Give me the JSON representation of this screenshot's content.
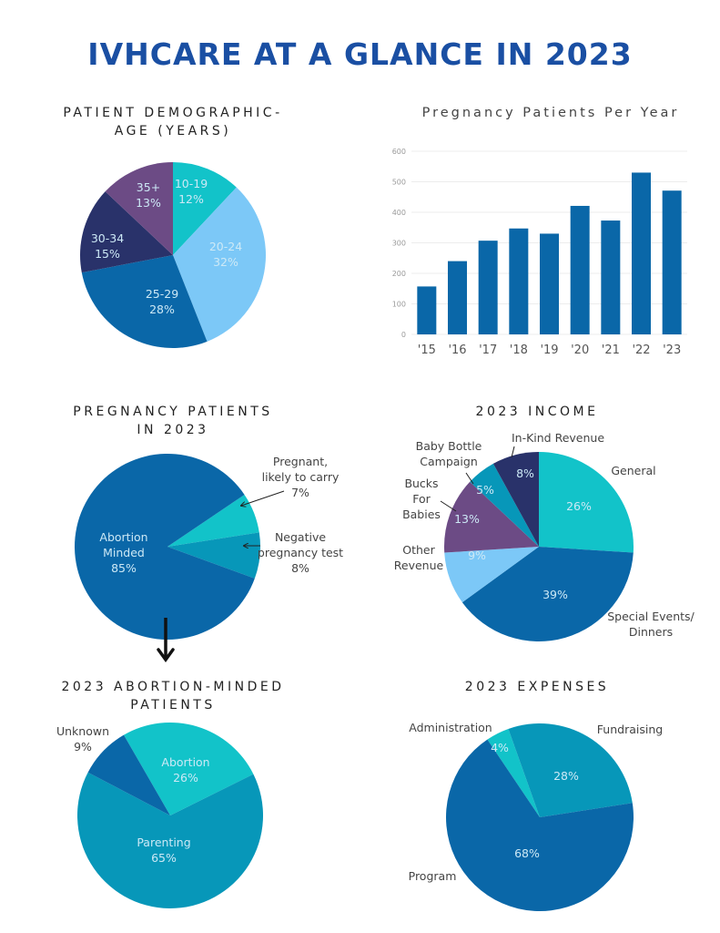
{
  "page": {
    "title": "IVHCARE AT A GLANCE IN 2023"
  },
  "chart_data": [
    {
      "id": "age",
      "type": "pie",
      "title": [
        "PATIENT DEMOGRAPHIC-",
        "AGE (YEARS)"
      ],
      "slices": [
        {
          "label": "10-19",
          "value": 12,
          "text": "12%",
          "color": "#12c3c9"
        },
        {
          "label": "20-24",
          "value": 32,
          "text": "32%",
          "color": "#7cc8f7"
        },
        {
          "label": "25-29",
          "value": 28,
          "text": "28%",
          "color": "#0a67a8"
        },
        {
          "label": "30-34",
          "value": 15,
          "text": "15%",
          "color": "#29326a"
        },
        {
          "label": "35+",
          "value": 13,
          "text": "13%",
          "color": "#6c4b85"
        }
      ]
    },
    {
      "id": "per-year",
      "type": "bar",
      "title": "Pregnancy Patients Per Year",
      "categories": [
        "'15",
        "'16",
        "'17",
        "'18",
        "'19",
        "'20",
        "'21",
        "'22",
        "'23"
      ],
      "values": [
        157,
        240,
        307,
        347,
        330,
        421,
        373,
        530,
        471
      ],
      "xlabel": "",
      "ylabel": "",
      "ylim": [
        0,
        600
      ],
      "yticks": [
        0,
        100,
        200,
        300,
        400,
        500,
        600
      ],
      "grid": true,
      "color": "#0a67a8"
    },
    {
      "id": "pregnancy",
      "type": "pie",
      "title": [
        "PREGNANCY PATIENTS",
        "IN 2023"
      ],
      "slices": [
        {
          "label": "Pregnant, likely to carry",
          "value": 7,
          "text": "7%",
          "color": "#12c3c9"
        },
        {
          "label": "Negative pregnancy test",
          "value": 8,
          "text": "8%",
          "color": "#0797b9"
        },
        {
          "label": "Abortion Minded",
          "value": 85,
          "text": "85%",
          "color": "#0a67a8"
        }
      ]
    },
    {
      "id": "income",
      "type": "pie",
      "title": "2023 INCOME",
      "slices": [
        {
          "label": "General",
          "value": 26,
          "text": "26%",
          "color": "#12c3c9"
        },
        {
          "label": "Special Events/ Dinners",
          "value": 39,
          "text": "39%",
          "color": "#0a67a8"
        },
        {
          "label": "Other Revenue",
          "value": 9,
          "text": "9%",
          "color": "#7cc8f7"
        },
        {
          "label": "Bucks For Babies",
          "value": 13,
          "text": "13%",
          "color": "#6c4b85"
        },
        {
          "label": "Baby Bottle Campaign",
          "value": 5,
          "text": "5%",
          "color": "#0797b9"
        },
        {
          "label": "In-Kind Revenue",
          "value": 8,
          "text": "8%",
          "color": "#29326a"
        }
      ]
    },
    {
      "id": "abortion-minded",
      "type": "pie",
      "title": [
        "2023 ABORTION-MINDED",
        "PATIENTS"
      ],
      "slices": [
        {
          "label": "Abortion",
          "value": 26,
          "text": "26%",
          "color": "#12c3c9"
        },
        {
          "label": "Parenting",
          "value": 65,
          "text": "65%",
          "color": "#0797b9"
        },
        {
          "label": "Unknown",
          "value": 9,
          "text": "9%",
          "color": "#0a67a8"
        }
      ]
    },
    {
      "id": "expenses",
      "type": "pie",
      "title": "2023 EXPENSES",
      "slices": [
        {
          "label": "Administration",
          "value": 4,
          "text": "4%",
          "color": "#12c3c9"
        },
        {
          "label": "Fundraising",
          "value": 28,
          "text": "28%",
          "color": "#0797b9"
        },
        {
          "label": "Program",
          "value": 68,
          "text": "68%",
          "color": "#0a67a8"
        }
      ]
    }
  ]
}
